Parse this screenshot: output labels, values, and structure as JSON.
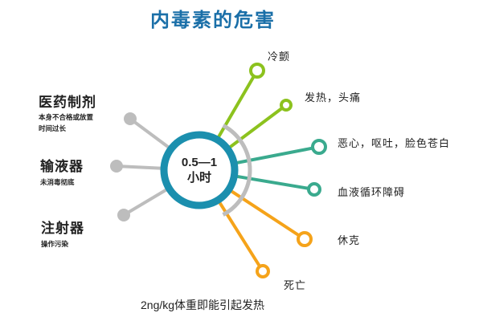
{
  "title": "内毒素的危害",
  "center": {
    "line1": "0.5—1",
    "line2": "小时"
  },
  "sources": [
    {
      "label": "医药制剂",
      "sub1": "本身不合格或放置",
      "sub2": "时间过长"
    },
    {
      "label": "输液器",
      "sub1": "未消毒彻底"
    },
    {
      "label": "注射器",
      "sub1": "操作污染"
    }
  ],
  "effects": [
    {
      "label": "冷颤",
      "color": "#8cc21e"
    },
    {
      "label": "发热，头痛",
      "color": "#8cc21e"
    },
    {
      "label": "恶心，呕吐，脸色苍白",
      "color": "#3aaa8e"
    },
    {
      "label": "血液循环障碍",
      "color": "#3aaa8e"
    },
    {
      "label": "休克",
      "color": "#f5a31a"
    },
    {
      "label": "死亡",
      "color": "#f5a31a"
    }
  ],
  "footer": "2ng/kg体重即能引起发热",
  "colors": {
    "title": "#1a6fa8",
    "ring": "#1b8fae",
    "gray": "#bdbdbd"
  }
}
